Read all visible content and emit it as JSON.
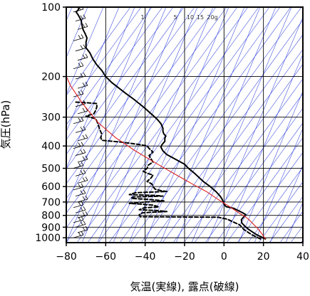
{
  "chart_data": {
    "type": "line",
    "title": "",
    "xlabel": "気温(実線), 露点(破線)",
    "ylabel": "気圧(hPa)",
    "xlim": [
      -80,
      40
    ],
    "ylim": [
      1050,
      100
    ],
    "y_scale": "log",
    "x_ticks": [
      -80,
      -60,
      -40,
      -20,
      0,
      20,
      40
    ],
    "x_tick_labels": [
      "−80",
      "−60",
      "−40",
      "−20",
      "0",
      "20",
      "40"
    ],
    "y_ticks": [
      100,
      200,
      300,
      400,
      500,
      600,
      700,
      800,
      900,
      1000
    ],
    "y_tick_labels": [
      "100",
      "200",
      "300",
      "400",
      "500",
      "600",
      "700",
      "800",
      "900",
      "1000"
    ],
    "grid": true,
    "mixing_ratio_labels": [
      "1",
      "5",
      "10",
      "15",
      "20g"
    ],
    "colors": {
      "temperature": "#000000",
      "dewpoint": "#000000",
      "parcel": "#e02020",
      "adiabats": "#3344dd",
      "grid": "#000000"
    },
    "series": [
      {
        "key": "temperature",
        "style": "solid",
        "points": [
          [
            21.0,
            1012
          ],
          [
            16.5,
            970
          ],
          [
            12.5,
            920
          ],
          [
            10.5,
            890
          ],
          [
            9.0,
            862
          ],
          [
            8.8,
            835
          ],
          [
            11.0,
            793
          ],
          [
            9.0,
            776
          ],
          [
            5.0,
            746
          ],
          [
            1.0,
            733
          ],
          [
            0.0,
            714
          ],
          [
            -1.0,
            680
          ],
          [
            -2.0,
            660
          ],
          [
            -4.0,
            632
          ],
          [
            -7.0,
            600
          ],
          [
            -10.0,
            575
          ],
          [
            -12.0,
            555
          ],
          [
            -15.0,
            525
          ],
          [
            -18.0,
            500
          ],
          [
            -20.0,
            480
          ],
          [
            -23.0,
            465
          ],
          [
            -26.0,
            450
          ],
          [
            -29.0,
            436
          ],
          [
            -31.0,
            420
          ],
          [
            -32.0,
            405
          ],
          [
            -31.5,
            395
          ],
          [
            -30.0,
            382
          ],
          [
            -30.0,
            370
          ],
          [
            -29.5,
            362
          ],
          [
            -30.5,
            355
          ],
          [
            -31.0,
            345
          ],
          [
            -31.0,
            335
          ],
          [
            -32.0,
            320
          ],
          [
            -34.0,
            306
          ],
          [
            -36.0,
            295
          ],
          [
            -38.0,
            285
          ],
          [
            -40.0,
            275
          ],
          [
            -43.0,
            262
          ],
          [
            -46.0,
            250
          ],
          [
            -50.0,
            236
          ],
          [
            -54.0,
            222
          ],
          [
            -57.0,
            212
          ],
          [
            -60.0,
            200
          ],
          [
            -62.0,
            188
          ],
          [
            -64.5,
            178
          ],
          [
            -66.5,
            168
          ],
          [
            -68.0,
            158
          ],
          [
            -70.0,
            150
          ],
          [
            -70.0,
            142
          ],
          [
            -69.5,
            136
          ],
          [
            -70.5,
            130
          ],
          [
            -71.5,
            125
          ],
          [
            -72.0,
            120
          ],
          [
            -72.5,
            114
          ],
          [
            -74.0,
            108
          ],
          [
            -75.0,
            105
          ],
          [
            -74.0,
            103
          ],
          [
            -73.5,
            100
          ]
        ]
      },
      {
        "key": "dewpoint",
        "style": "dashed",
        "points": [
          [
            18.5,
            1012
          ],
          [
            14.0,
            970
          ],
          [
            10.0,
            920
          ],
          [
            8.0,
            880
          ],
          [
            1.5,
            830
          ],
          [
            -3.0,
            815
          ],
          [
            -16.0,
            813
          ],
          [
            -30.0,
            812
          ],
          [
            -42.5,
            811
          ],
          [
            -43.0,
            795
          ],
          [
            -41.5,
            780
          ],
          [
            -37.0,
            775
          ],
          [
            -29.0,
            770
          ],
          [
            -34.0,
            762
          ],
          [
            -43.0,
            756
          ],
          [
            -40.5,
            742
          ],
          [
            -33.0,
            735
          ],
          [
            -36.0,
            722
          ],
          [
            -42.0,
            715
          ],
          [
            -48.0,
            710
          ],
          [
            -40.0,
            700
          ],
          [
            -33.0,
            695
          ],
          [
            -30.5,
            692
          ],
          [
            -38.0,
            682
          ],
          [
            -47.0,
            675
          ],
          [
            -46.0,
            665
          ],
          [
            -37.0,
            662
          ],
          [
            -31.0,
            660
          ],
          [
            -35.5,
            655
          ],
          [
            -48.0,
            650
          ],
          [
            -45.0,
            638
          ],
          [
            -33.0,
            632
          ],
          [
            -29.0,
            630
          ],
          [
            -32.0,
            625
          ],
          [
            -35.0,
            615
          ],
          [
            -36.0,
            600
          ],
          [
            -36.5,
            585
          ],
          [
            -39.0,
            570
          ],
          [
            -37.0,
            550
          ],
          [
            -36.0,
            535
          ],
          [
            -39.0,
            525
          ],
          [
            -41.0,
            515
          ],
          [
            -39.0,
            500
          ],
          [
            -38.5,
            485
          ],
          [
            -36.0,
            470
          ],
          [
            -37.0,
            455
          ],
          [
            -38.0,
            440
          ],
          [
            -36.0,
            425
          ],
          [
            -38.0,
            410
          ],
          [
            -39.0,
            400
          ],
          [
            -44.0,
            393
          ],
          [
            -52.0,
            385
          ],
          [
            -62.0,
            378
          ],
          [
            -62.5,
            368
          ],
          [
            -62.0,
            355
          ],
          [
            -63.0,
            340
          ],
          [
            -64.0,
            320
          ],
          [
            -65.0,
            305
          ],
          [
            -70.0,
            297
          ],
          [
            -66.0,
            290
          ],
          [
            -65.0,
            280
          ],
          [
            -64.5,
            270
          ],
          [
            -64.5,
            262
          ],
          [
            -69.0,
            260
          ],
          [
            -76.0,
            258
          ]
        ]
      },
      {
        "key": "parcel",
        "style": "solid",
        "points": [
          [
            21.0,
            1012
          ],
          [
            19.5,
            970
          ],
          [
            17.5,
            920
          ],
          [
            15.0,
            875
          ],
          [
            13.0,
            840
          ],
          [
            10.8,
            810
          ],
          [
            8.5,
            790
          ],
          [
            5.5,
            760
          ],
          [
            2.5,
            730
          ],
          [
            -1.0,
            700
          ],
          [
            -9.0,
            630
          ],
          [
            -16.0,
            585
          ],
          [
            -24.0,
            535
          ],
          [
            -34.0,
            478
          ],
          [
            -45.0,
            420
          ],
          [
            -55.0,
            368
          ],
          [
            -64.0,
            316
          ],
          [
            -72.0,
            260
          ],
          [
            -78.0,
            218
          ],
          [
            -81.0,
            190
          ]
        ]
      }
    ]
  }
}
